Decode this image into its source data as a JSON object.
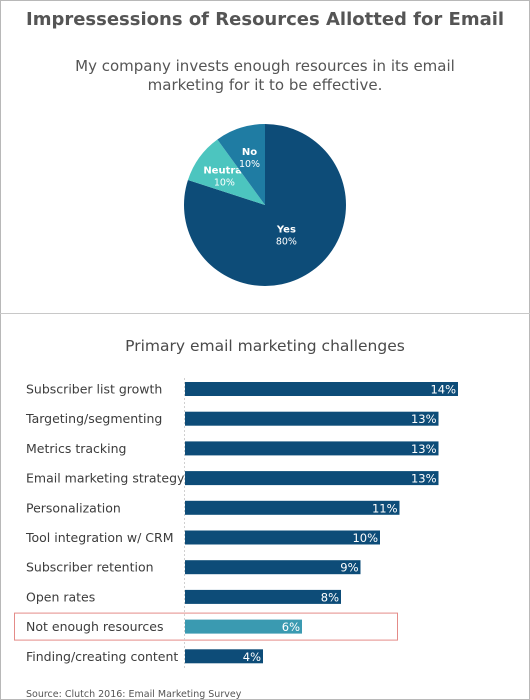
{
  "colors": {
    "dark_blue": "#0d4c78",
    "mid_blue": "#1f7ca3",
    "teal": "#4cc5bf",
    "highlight_bar": "#3a9ab1",
    "highlight_box": "#e48b88"
  },
  "title": "Impressessions of Resources Allotted for Email",
  "source": "Source: Clutch 2016: Email Marketing Survey",
  "chart_data": [
    {
      "type": "pie",
      "title": "My company invests enough resources in its email marketing for it to be effective.",
      "slices": [
        {
          "label": "Yes",
          "value": 80,
          "display": "80%",
          "color": "#0d4c78"
        },
        {
          "label": "Neutral",
          "value": 10,
          "display": "10%",
          "color": "#4cc5bf"
        },
        {
          "label": "No",
          "value": 10,
          "display": "10%",
          "color": "#1f7ca3"
        }
      ]
    },
    {
      "type": "bar",
      "orientation": "horizontal",
      "title": "Primary email marketing challenges",
      "categories": [
        "Subscriber list growth",
        "Targeting/segmenting",
        "Metrics tracking",
        "Email marketing strategy",
        "Personalization",
        "Tool integration w/ CRM",
        "Subscriber retention",
        "Open rates",
        "Not enough resources",
        "Finding/creating content"
      ],
      "values": [
        14,
        13,
        13,
        13,
        11,
        10,
        9,
        8,
        6,
        4
      ],
      "value_labels": [
        "14%",
        "13%",
        "13%",
        "13%",
        "11%",
        "10%",
        "9%",
        "8%",
        "6%",
        "4%"
      ],
      "highlighted": "Not enough resources"
    }
  ]
}
